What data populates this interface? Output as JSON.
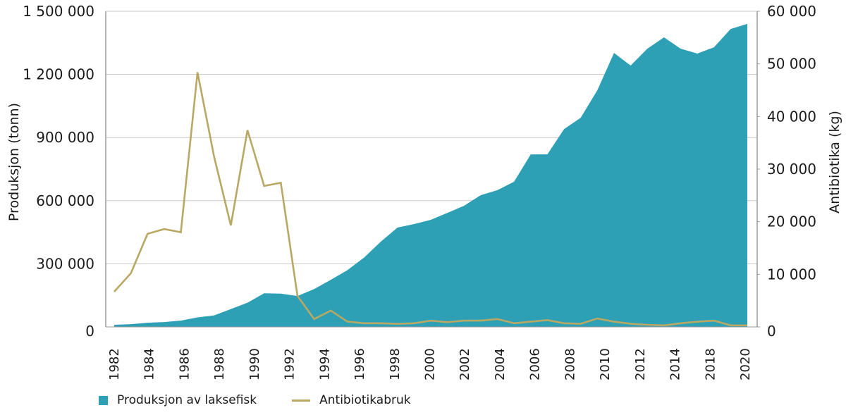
{
  "chart_data": {
    "type": "area",
    "title": "",
    "xlabel": "",
    "ylabel": "Produksjon (tonn)",
    "y2label": "Antibiotika (kg)",
    "ylim": [
      0,
      1500000
    ],
    "y2lim": [
      0,
      60000
    ],
    "grid": true,
    "legend_position": "bottom-left",
    "x": [
      1982,
      1983,
      1984,
      1985,
      1986,
      1987,
      1988,
      1989,
      1990,
      1991,
      1992,
      1993,
      1994,
      1995,
      1996,
      1997,
      1998,
      1999,
      2000,
      2001,
      2002,
      2003,
      2004,
      2005,
      2006,
      2007,
      2008,
      2009,
      2010,
      2011,
      2012,
      2013,
      2014,
      2015,
      2016,
      2017,
      2018,
      2019,
      2020
    ],
    "x_tick_labels": [
      "1982",
      "1984",
      "1986",
      "1988",
      "1990",
      "1992",
      "1994",
      "1996",
      "1998",
      "2000",
      "2002",
      "2004",
      "2006",
      "2008",
      "2010",
      "2012",
      "2014",
      "2018",
      "2020"
    ],
    "y_tick_labels": [
      "0",
      "300 000",
      "600 000",
      "900 000",
      "1 200 000",
      "1 500 000"
    ],
    "y_ticks": [
      0,
      300000,
      600000,
      900000,
      1200000,
      1500000
    ],
    "y2_tick_labels": [
      "0",
      "10 000",
      "20 000",
      "30 000",
      "40 000",
      "50 000",
      "60 000"
    ],
    "y2_ticks": [
      0,
      10000,
      20000,
      30000,
      40000,
      50000,
      60000
    ],
    "series": [
      {
        "name": "Produksjon av laksefisk",
        "kind": "area",
        "axis": "left",
        "color": "#2ea0b5",
        "values": [
          10000,
          13000,
          20000,
          23000,
          30000,
          45000,
          55000,
          85000,
          115000,
          160000,
          158000,
          147000,
          180000,
          224000,
          270000,
          330000,
          405000,
          472000,
          489000,
          509000,
          542000,
          576000,
          626000,
          650000,
          690000,
          820000,
          820000,
          940000,
          994000,
          1125000,
          1302000,
          1242000,
          1322000,
          1376000,
          1322000,
          1299000,
          1329000,
          1416000,
          1440000
        ]
      },
      {
        "name": "Antibiotikabruk",
        "kind": "line",
        "axis": "right",
        "color": "#b9a864",
        "values": [
          6700,
          10200,
          17700,
          18600,
          18000,
          48400,
          32300,
          19300,
          37400,
          26800,
          27400,
          5900,
          1500,
          3100,
          1000,
          700,
          700,
          600,
          700,
          1200,
          900,
          1200,
          1200,
          1500,
          700,
          1000,
          1300,
          700,
          600,
          1600,
          1000,
          600,
          400,
          300,
          700,
          1000,
          1200,
          300,
          300
        ]
      }
    ]
  },
  "legend": {
    "items": [
      {
        "label": "Produksjon av laksefisk",
        "color": "#2ea0b5"
      },
      {
        "label": "Antibiotikabruk",
        "color": "#b9a864"
      }
    ]
  }
}
